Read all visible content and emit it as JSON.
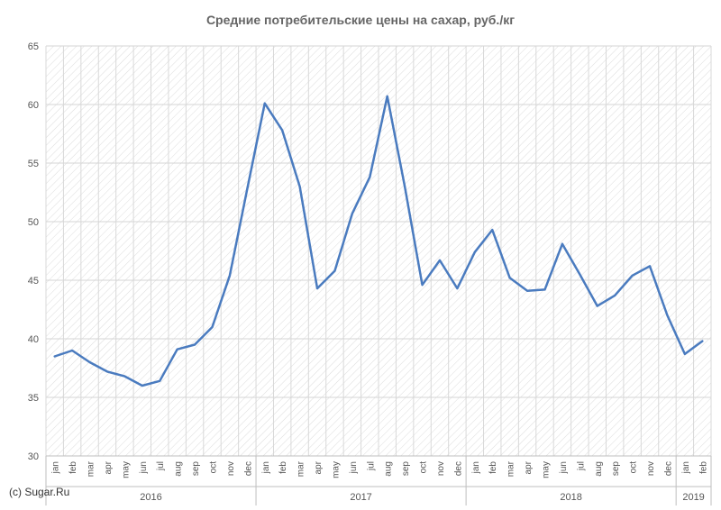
{
  "chart_data": {
    "type": "line",
    "title": "Средние потребительские цены на сахар, руб./кг",
    "xlabel": "",
    "ylabel": "",
    "ylim": [
      30,
      65
    ],
    "y_ticks": [
      30,
      35,
      40,
      45,
      50,
      55,
      60,
      65
    ],
    "grid": "on",
    "legend": "none",
    "line_color": "#4a7bbf",
    "months": [
      "jan",
      "feb",
      "mar",
      "apr",
      "may",
      "jun",
      "jul",
      "aug",
      "sep",
      "oct",
      "nov",
      "dec",
      "jan",
      "feb",
      "mar",
      "apr",
      "may",
      "jun",
      "jul",
      "aug",
      "sep",
      "oct",
      "nov",
      "dec",
      "jan",
      "feb",
      "mar",
      "apr",
      "may",
      "jun",
      "jul",
      "aug",
      "sep",
      "oct",
      "nov",
      "dec",
      "jan",
      "feb"
    ],
    "years": [
      {
        "label": "2016",
        "months": 12
      },
      {
        "label": "2017",
        "months": 12
      },
      {
        "label": "2018",
        "months": 12
      },
      {
        "label": "2019",
        "months": 2
      }
    ],
    "series": [
      {
        "values": [
          38.5,
          39.0,
          38.0,
          37.2,
          36.8,
          36.0,
          36.4,
          39.1,
          39.5,
          41.0,
          45.4,
          52.8,
          60.1,
          57.8,
          53.0,
          44.3,
          45.8,
          50.7,
          53.8,
          60.7,
          53.0,
          44.6,
          46.7,
          44.3,
          47.4,
          49.3,
          45.2,
          44.1,
          44.2,
          48.1,
          45.5,
          42.8,
          43.7,
          45.4,
          46.2,
          42.0,
          38.7,
          39.8
        ]
      }
    ]
  },
  "watermark": "(c) Sugar.Ru"
}
